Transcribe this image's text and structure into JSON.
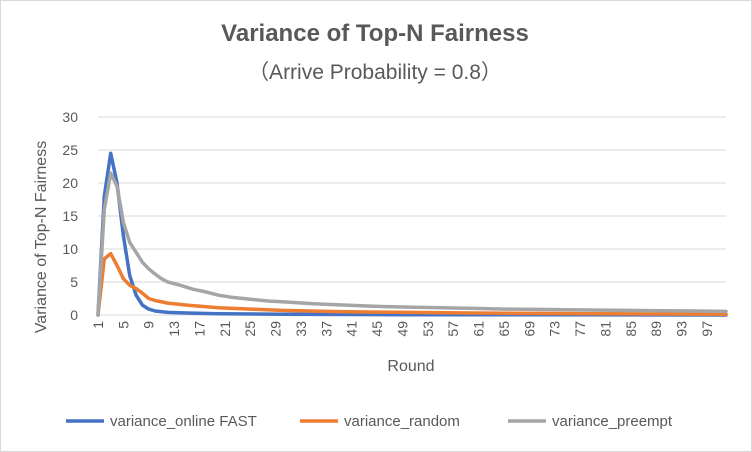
{
  "chart_data": {
    "type": "line",
    "title": "Variance of Top-N Fairness",
    "subtitle": "（Arrive Probability = 0.8）",
    "xlabel": "Round",
    "ylabel": "Variance of Top-N Fairness",
    "ylim": [
      0,
      30
    ],
    "yticks": [
      0,
      5,
      10,
      15,
      20,
      25,
      30
    ],
    "xlim": [
      1,
      100
    ],
    "xticks": [
      1,
      5,
      9,
      13,
      17,
      21,
      25,
      29,
      33,
      37,
      41,
      45,
      49,
      53,
      57,
      61,
      65,
      69,
      73,
      77,
      81,
      85,
      89,
      93,
      97
    ],
    "grid": true,
    "legend_position": "bottom",
    "series": [
      {
        "name": "variance_online FAST",
        "color": "#4472C4",
        "points": [
          [
            1,
            0
          ],
          [
            2,
            18
          ],
          [
            3,
            24.5
          ],
          [
            4,
            20
          ],
          [
            5,
            12
          ],
          [
            6,
            6
          ],
          [
            7,
            3
          ],
          [
            8,
            1.5
          ],
          [
            9,
            0.9
          ],
          [
            10,
            0.6
          ],
          [
            12,
            0.4
          ],
          [
            15,
            0.3
          ],
          [
            20,
            0.2
          ],
          [
            30,
            0.1
          ],
          [
            50,
            0.05
          ],
          [
            100,
            0
          ]
        ]
      },
      {
        "name": "variance_random",
        "color": "#ED7D31",
        "points": [
          [
            1,
            0
          ],
          [
            2,
            8.5
          ],
          [
            3,
            9.3
          ],
          [
            4,
            7.5
          ],
          [
            5,
            5.5
          ],
          [
            6,
            4.5
          ],
          [
            7,
            4
          ],
          [
            8,
            3.3
          ],
          [
            9,
            2.5
          ],
          [
            10,
            2.2
          ],
          [
            12,
            1.8
          ],
          [
            15,
            1.5
          ],
          [
            20,
            1.1
          ],
          [
            25,
            0.9
          ],
          [
            30,
            0.7
          ],
          [
            40,
            0.5
          ],
          [
            50,
            0.4
          ],
          [
            60,
            0.3
          ],
          [
            70,
            0.25
          ],
          [
            80,
            0.2
          ],
          [
            90,
            0.15
          ],
          [
            100,
            0.1
          ]
        ]
      },
      {
        "name": "variance_preempt",
        "color": "#A5A5A5",
        "points": [
          [
            1,
            0
          ],
          [
            2,
            16
          ],
          [
            3,
            21.5
          ],
          [
            4,
            19.5
          ],
          [
            5,
            14
          ],
          [
            6,
            11
          ],
          [
            7,
            9.5
          ],
          [
            8,
            8
          ],
          [
            9,
            7
          ],
          [
            10,
            6.2
          ],
          [
            11,
            5.5
          ],
          [
            12,
            5
          ],
          [
            14,
            4.5
          ],
          [
            16,
            3.9
          ],
          [
            18,
            3.5
          ],
          [
            20,
            3
          ],
          [
            22,
            2.7
          ],
          [
            25,
            2.4
          ],
          [
            28,
            2.1
          ],
          [
            30,
            2
          ],
          [
            35,
            1.7
          ],
          [
            40,
            1.5
          ],
          [
            45,
            1.3
          ],
          [
            50,
            1.2
          ],
          [
            55,
            1.1
          ],
          [
            60,
            1
          ],
          [
            65,
            0.9
          ],
          [
            70,
            0.85
          ],
          [
            75,
            0.8
          ],
          [
            80,
            0.75
          ],
          [
            85,
            0.7
          ],
          [
            90,
            0.65
          ],
          [
            95,
            0.6
          ],
          [
            100,
            0.55
          ]
        ]
      }
    ]
  }
}
